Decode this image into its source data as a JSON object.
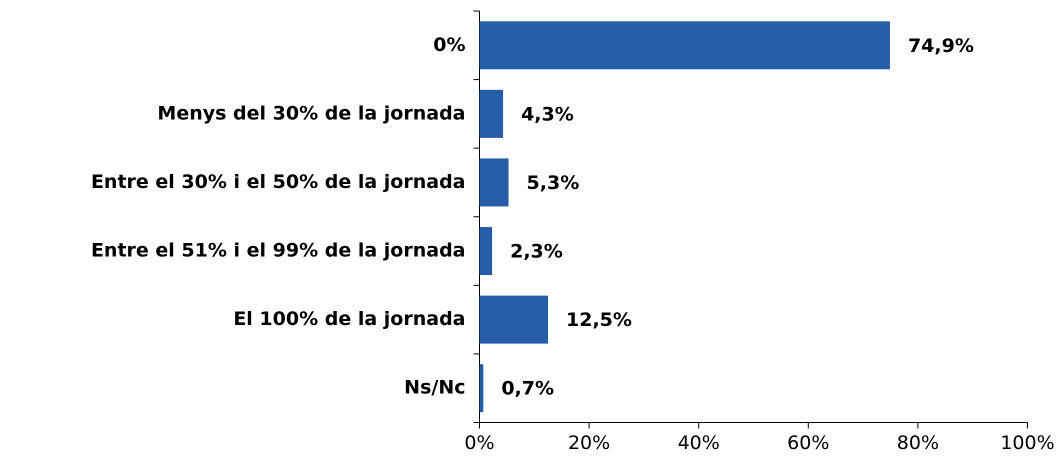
{
  "chart_data": {
    "type": "bar",
    "orientation": "horizontal",
    "categories": [
      "0%",
      "Menys del 30% de la jornada",
      "Entre el 30% i el 50% de la jornada",
      "Entre el 51% i el 99% de la jornada",
      "El 100% de la jornada",
      "Ns/Nc"
    ],
    "values": [
      74.9,
      4.3,
      5.3,
      2.3,
      12.5,
      0.7
    ],
    "value_labels": [
      "74,9%",
      "4,3%",
      "5,3%",
      "2,3%",
      "12,5%",
      "0,7%"
    ],
    "color": "#255ea6",
    "xlim": [
      0,
      100
    ],
    "xticks": [
      {
        "value": 0,
        "label": "0%"
      },
      {
        "value": 20,
        "label": "20%"
      },
      {
        "value": 40,
        "label": "40%"
      },
      {
        "value": 60,
        "label": "60%"
      },
      {
        "value": 80,
        "label": "80%"
      },
      {
        "value": 100,
        "label": "100%"
      }
    ],
    "grid": false
  }
}
